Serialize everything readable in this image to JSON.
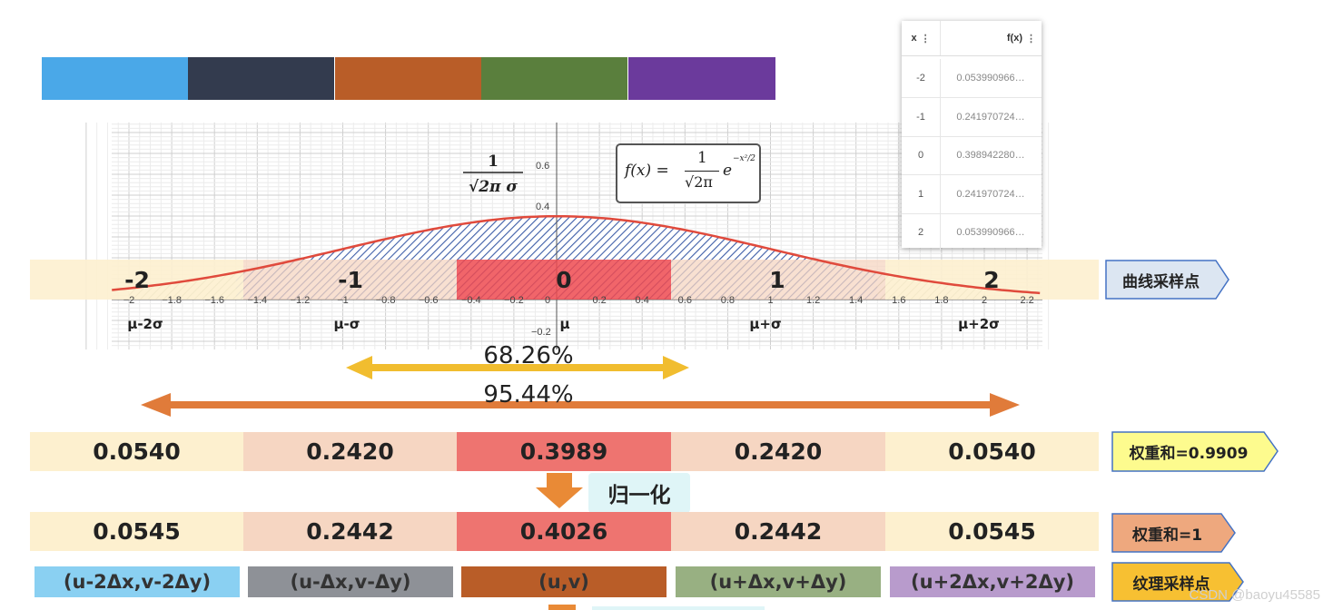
{
  "swatches": [
    "#4aa8e8",
    "#333b4e",
    "#b95d28",
    "#5a7f3d",
    "#6b3a9c"
  ],
  "chart_data": {
    "type": "line",
    "title": "",
    "xlabel": "",
    "ylabel": "",
    "xlim": [
      -2.2,
      2.3
    ],
    "ylim": [
      -0.3,
      0.65
    ],
    "x_ticks": [
      "−2",
      "−1.8",
      "−1.6",
      "−1.4",
      "−1.2",
      "−1",
      "−0.8",
      "−0.6",
      "−0.4",
      "−0.2",
      "0",
      "0.2",
      "0.4",
      "0.6",
      "0.8",
      "1",
      "1.2",
      "1.4",
      "1.6",
      "1.8",
      "2",
      "2.2"
    ],
    "y_ticks": [
      "0.6",
      "0.4",
      "−0.2"
    ],
    "series": [
      {
        "function": "f(x)=1/sqrt(2π)·e^(−x²/2)",
        "color": "#e04a3c"
      }
    ],
    "formula_left": {
      "numerator": "1",
      "denominator": "√2π σ"
    },
    "formula_box": {
      "lhs": "f(x) =",
      "numerator": "1",
      "denominator": "√2π",
      "base": "e",
      "exponent": "−x²/2"
    },
    "sample_points": [
      {
        "label": "-2",
        "mu_label": "μ-2σ"
      },
      {
        "label": "-1",
        "mu_label": "μ-σ"
      },
      {
        "label": "0",
        "mu_label": "μ"
      },
      {
        "label": "1",
        "mu_label": "μ+σ"
      },
      {
        "label": "2",
        "mu_label": "μ+2σ"
      }
    ]
  },
  "table": {
    "header_x": "x",
    "header_fx": "f(x)",
    "rows": [
      {
        "x": "-2",
        "fx": "0.053990966…"
      },
      {
        "x": "-1",
        "fx": "0.241970724…"
      },
      {
        "x": "0",
        "fx": "0.398942280…"
      },
      {
        "x": "1",
        "fx": "0.241970724…"
      },
      {
        "x": "2",
        "fx": "0.053990966…"
      }
    ]
  },
  "percent_inner": "68.26%",
  "percent_outer": "95.44%",
  "weights": [
    "0.0540",
    "0.2420",
    "0.3989",
    "0.2420",
    "0.0540"
  ],
  "normalize_label": "归一化",
  "normalized": [
    "0.0545",
    "0.2442",
    "0.4026",
    "0.2442",
    "0.0545"
  ],
  "texture": [
    "(u-2Δx,v-2Δy)",
    "(u-Δx,v-Δy)",
    "(u,v)",
    "(u+Δx,v+Δy)",
    "(u+2Δx,v+2Δy)"
  ],
  "tags": {
    "curve": "曲线采样点",
    "sum1": "权重和=0.9909",
    "sum2": "权重和=1",
    "texture": "纹理采样点"
  },
  "colors": {
    "outer_cell": "#fdf0cf",
    "mid_cell": "#f6d6c2",
    "center_cell": "#ee7470",
    "tex": [
      "#8ad0f2",
      "#8e9197",
      "#b95d28",
      "#98b082",
      "#b89bcc"
    ]
  },
  "watermark": "CSDN @baoyu45585"
}
